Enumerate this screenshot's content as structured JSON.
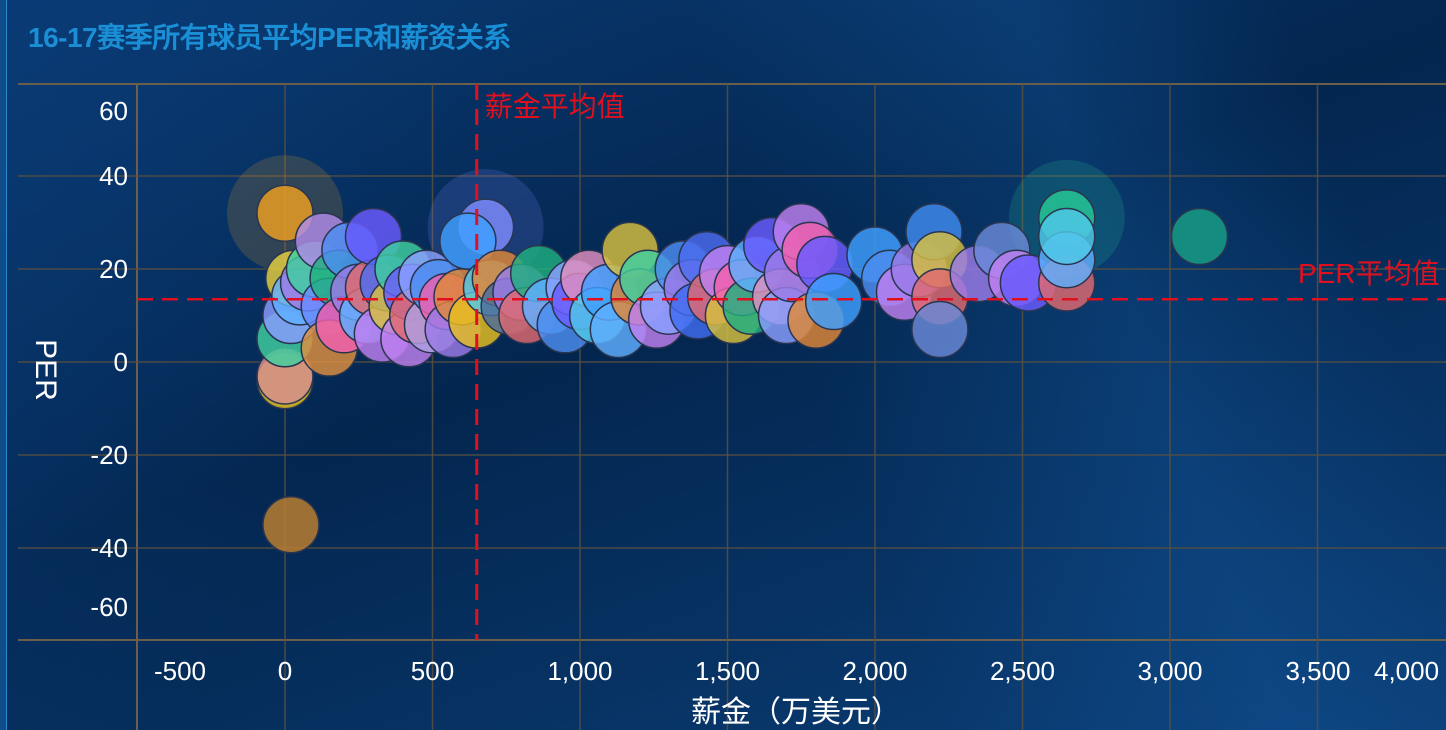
{
  "chart_data": {
    "type": "scatter",
    "title": "16-17赛季所有球员平均PER和薪资关系",
    "xlabel": "薪金（万美元）",
    "ylabel": "PER",
    "xlim": [
      -700,
      4300
    ],
    "ylim": [
      -66,
      66
    ],
    "xticks": [
      -500,
      0,
      500,
      1000,
      1500,
      2000,
      2500,
      3000,
      3500,
      4000
    ],
    "xtick_labels": [
      "-500",
      "0",
      "500",
      "1,000",
      "1,500",
      "2,000",
      "2,500",
      "3,000",
      "3,500",
      "4,000"
    ],
    "yticks": [
      -60,
      -40,
      -20,
      0,
      20,
      40,
      60
    ],
    "ytick_labels": [
      "-60",
      "-40",
      "-20",
      "0",
      "20",
      "40",
      "60"
    ],
    "grid": true,
    "reference_lines": {
      "salary_mean": {
        "value": 650,
        "label": "薪金平均值",
        "color": "#e0101e"
      },
      "per_mean": {
        "value": 13.5,
        "label": "PER平均值",
        "color": "#e0101e"
      }
    },
    "palette": [
      "#f0a020",
      "#9b7be8",
      "#5fb0ff",
      "#3fd0a0",
      "#f060b0",
      "#e06a70",
      "#6a5cff",
      "#d8c040",
      "#4d8ef0",
      "#c080f0",
      "#50c8e8",
      "#e08838",
      "#8aa0ff",
      "#20b080"
    ],
    "points": [
      {
        "x": 0,
        "y": 32,
        "color": "#f0a020",
        "emphasis": true
      },
      {
        "x": 680,
        "y": 29,
        "color": "#7f8cff",
        "emphasis": true
      },
      {
        "x": 2650,
        "y": 31,
        "color": "#27c996",
        "emphasis": true
      },
      {
        "x": 3100,
        "y": 27,
        "color": "#17a085"
      },
      {
        "x": 20,
        "y": -35,
        "color": "#c08030"
      },
      {
        "x": 0,
        "y": -4,
        "color": "#e8c020"
      },
      {
        "x": 0,
        "y": -3,
        "color": "#d89090"
      },
      {
        "x": 0,
        "y": 5,
        "color": "#3fd0a0"
      },
      {
        "x": 20,
        "y": 10,
        "color": "#8a9cff"
      },
      {
        "x": 30,
        "y": 18,
        "color": "#e8d040"
      },
      {
        "x": 50,
        "y": 14,
        "color": "#5fb0ff"
      },
      {
        "x": 80,
        "y": 17,
        "color": "#9b7be8"
      },
      {
        "x": 100,
        "y": 20,
        "color": "#3fd0a0"
      },
      {
        "x": 130,
        "y": 26,
        "color": "#b08be8"
      },
      {
        "x": 150,
        "y": 12,
        "color": "#6a8cff"
      },
      {
        "x": 150,
        "y": 3,
        "color": "#e09040"
      },
      {
        "x": 180,
        "y": 18,
        "color": "#20b080"
      },
      {
        "x": 200,
        "y": 8,
        "color": "#f060b0"
      },
      {
        "x": 220,
        "y": 24,
        "color": "#4d8ef0"
      },
      {
        "x": 250,
        "y": 15,
        "color": "#9b7be8"
      },
      {
        "x": 280,
        "y": 10,
        "color": "#5fb0ff"
      },
      {
        "x": 300,
        "y": 16,
        "color": "#e06a70"
      },
      {
        "x": 300,
        "y": 27,
        "color": "#6a5cff"
      },
      {
        "x": 330,
        "y": 6,
        "color": "#c080f0"
      },
      {
        "x": 350,
        "y": 17,
        "color": "#4d6cf0"
      },
      {
        "x": 380,
        "y": 12,
        "color": "#d8c040"
      },
      {
        "x": 400,
        "y": 20,
        "color": "#3fd0a0"
      },
      {
        "x": 420,
        "y": 5,
        "color": "#c080f0"
      },
      {
        "x": 430,
        "y": 15,
        "color": "#6a5cff"
      },
      {
        "x": 450,
        "y": 10,
        "color": "#e06a70"
      },
      {
        "x": 480,
        "y": 18,
        "color": "#8aa0ff"
      },
      {
        "x": 500,
        "y": 8,
        "color": "#b0a0e0"
      },
      {
        "x": 520,
        "y": 16,
        "color": "#4d8ef0"
      },
      {
        "x": 550,
        "y": 13,
        "color": "#f060b0"
      },
      {
        "x": 570,
        "y": 7,
        "color": "#9b7be8"
      },
      {
        "x": 600,
        "y": 14,
        "color": "#e08838"
      },
      {
        "x": 620,
        "y": 26,
        "color": "#3fa0ff"
      },
      {
        "x": 650,
        "y": 9,
        "color": "#e8c020"
      },
      {
        "x": 700,
        "y": 16,
        "color": "#50c8e8"
      },
      {
        "x": 730,
        "y": 18,
        "color": "#e08838"
      },
      {
        "x": 760,
        "y": 12,
        "color": "#4d6c9a"
      },
      {
        "x": 800,
        "y": 15,
        "color": "#9b7be8"
      },
      {
        "x": 820,
        "y": 10,
        "color": "#e06a70"
      },
      {
        "x": 860,
        "y": 19,
        "color": "#20b080"
      },
      {
        "x": 900,
        "y": 12,
        "color": "#5fb0ff"
      },
      {
        "x": 950,
        "y": 8,
        "color": "#4d8ef0"
      },
      {
        "x": 980,
        "y": 16,
        "color": "#8aa0ff"
      },
      {
        "x": 1000,
        "y": 13,
        "color": "#6a5cff"
      },
      {
        "x": 1030,
        "y": 18,
        "color": "#e090c0"
      },
      {
        "x": 1060,
        "y": 10,
        "color": "#50c8e8"
      },
      {
        "x": 1100,
        "y": 15,
        "color": "#3fa0ff"
      },
      {
        "x": 1130,
        "y": 7,
        "color": "#5fb0ff"
      },
      {
        "x": 1170,
        "y": 24,
        "color": "#d8c040"
      },
      {
        "x": 1200,
        "y": 14,
        "color": "#e08838"
      },
      {
        "x": 1230,
        "y": 18,
        "color": "#3fd0a0"
      },
      {
        "x": 1260,
        "y": 9,
        "color": "#c080f0"
      },
      {
        "x": 1300,
        "y": 12,
        "color": "#8aa0ff"
      },
      {
        "x": 1350,
        "y": 20,
        "color": "#4d8ef0"
      },
      {
        "x": 1380,
        "y": 16,
        "color": "#9b7be8"
      },
      {
        "x": 1400,
        "y": 11,
        "color": "#3f6cf0"
      },
      {
        "x": 1430,
        "y": 22,
        "color": "#4d6cf0"
      },
      {
        "x": 1460,
        "y": 14,
        "color": "#e06a70"
      },
      {
        "x": 1500,
        "y": 19,
        "color": "#c080f0"
      },
      {
        "x": 1520,
        "y": 10,
        "color": "#d8c040"
      },
      {
        "x": 1550,
        "y": 16,
        "color": "#f060b0"
      },
      {
        "x": 1580,
        "y": 12,
        "color": "#20b080"
      },
      {
        "x": 1600,
        "y": 21,
        "color": "#5fb0ff"
      },
      {
        "x": 1650,
        "y": 25,
        "color": "#6a5cff"
      },
      {
        "x": 1680,
        "y": 14,
        "color": "#e090c0"
      },
      {
        "x": 1700,
        "y": 10,
        "color": "#8aa0ff"
      },
      {
        "x": 1720,
        "y": 19,
        "color": "#9b7be8"
      },
      {
        "x": 1750,
        "y": 28,
        "color": "#c080f0"
      },
      {
        "x": 1780,
        "y": 24,
        "color": "#f060b0"
      },
      {
        "x": 1800,
        "y": 9,
        "color": "#e08838"
      },
      {
        "x": 1830,
        "y": 21,
        "color": "#6a5cff"
      },
      {
        "x": 1860,
        "y": 13,
        "color": "#3fa0ff"
      },
      {
        "x": 2000,
        "y": 23,
        "color": "#3fa0ff"
      },
      {
        "x": 2050,
        "y": 18,
        "color": "#4d8ef0"
      },
      {
        "x": 2100,
        "y": 15,
        "color": "#c080f0"
      },
      {
        "x": 2150,
        "y": 20,
        "color": "#9b7be8"
      },
      {
        "x": 2200,
        "y": 28,
        "color": "#3f8cf0"
      },
      {
        "x": 2220,
        "y": 22,
        "color": "#d8c040"
      },
      {
        "x": 2220,
        "y": 14,
        "color": "#e06a70"
      },
      {
        "x": 2220,
        "y": 7,
        "color": "#6a8ad8"
      },
      {
        "x": 2350,
        "y": 19,
        "color": "#9b7be8"
      },
      {
        "x": 2430,
        "y": 24,
        "color": "#6a8ad8"
      },
      {
        "x": 2480,
        "y": 18,
        "color": "#c080f0"
      },
      {
        "x": 2520,
        "y": 17,
        "color": "#6a5cff"
      },
      {
        "x": 2650,
        "y": 17,
        "color": "#e06a70"
      },
      {
        "x": 2650,
        "y": 22,
        "color": "#5fb0ff"
      },
      {
        "x": 2650,
        "y": 27,
        "color": "#50c8e8"
      }
    ]
  }
}
